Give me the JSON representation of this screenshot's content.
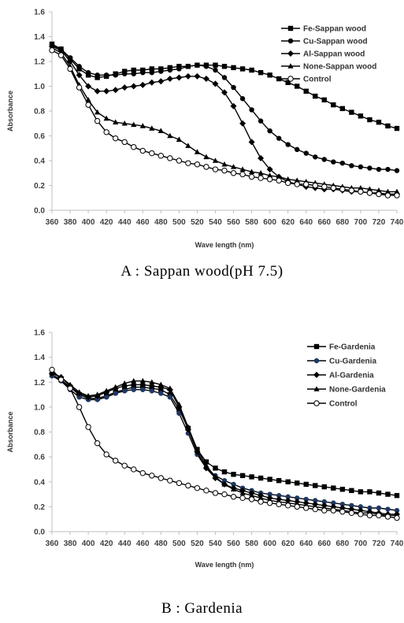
{
  "panels": [
    {
      "caption": "A : Sappan wood(pH 7.5)",
      "chart_data": {
        "type": "line",
        "title": "",
        "xlabel": "Wave length (nm)",
        "ylabel": "Absorbance",
        "ylim": [
          0,
          1.6
        ],
        "yticks": [
          "0.0",
          "0.2",
          "0.4",
          "0.6",
          "0.8",
          "1.0",
          "1.2",
          "1.4",
          "1.6"
        ],
        "x": [
          360,
          370,
          380,
          390,
          400,
          410,
          420,
          430,
          440,
          450,
          460,
          470,
          480,
          490,
          500,
          510,
          520,
          530,
          540,
          550,
          560,
          570,
          580,
          590,
          600,
          610,
          620,
          630,
          640,
          650,
          660,
          670,
          680,
          690,
          700,
          710,
          720,
          730,
          740
        ],
        "xticks": [
          "360",
          "380",
          "400",
          "420",
          "440",
          "460",
          "480",
          "500",
          "520",
          "540",
          "560",
          "580",
          "600",
          "620",
          "640",
          "660",
          "680",
          "700",
          "720",
          "740"
        ],
        "legend_position": "top-right",
        "series": [
          {
            "name": "Fe-Sappan wood",
            "marker": "square",
            "values": [
              1.34,
              1.3,
              1.22,
              1.14,
              1.09,
              1.07,
              1.08,
              1.1,
              1.12,
              1.13,
              1.13,
              1.14,
              1.14,
              1.15,
              1.16,
              1.16,
              1.17,
              1.17,
              1.17,
              1.16,
              1.15,
              1.14,
              1.13,
              1.11,
              1.09,
              1.06,
              1.03,
              1.0,
              0.96,
              0.92,
              0.89,
              0.85,
              0.82,
              0.79,
              0.76,
              0.73,
              0.71,
              0.68,
              0.66
            ]
          },
          {
            "name": "Cu-Sappan wood",
            "marker": "circle",
            "values": [
              1.33,
              1.3,
              1.23,
              1.16,
              1.11,
              1.09,
              1.09,
              1.09,
              1.1,
              1.1,
              1.11,
              1.11,
              1.12,
              1.13,
              1.14,
              1.16,
              1.17,
              1.16,
              1.13,
              1.07,
              0.99,
              0.9,
              0.81,
              0.72,
              0.64,
              0.58,
              0.53,
              0.49,
              0.46,
              0.43,
              0.41,
              0.39,
              0.38,
              0.36,
              0.35,
              0.34,
              0.33,
              0.33,
              0.32
            ]
          },
          {
            "name": "Al-Sappan wood",
            "marker": "diamond",
            "values": [
              1.32,
              1.29,
              1.2,
              1.09,
              1.0,
              0.96,
              0.96,
              0.97,
              0.99,
              1.0,
              1.01,
              1.03,
              1.04,
              1.06,
              1.07,
              1.08,
              1.08,
              1.06,
              1.02,
              0.95,
              0.84,
              0.7,
              0.55,
              0.42,
              0.33,
              0.27,
              0.23,
              0.21,
              0.19,
              0.18,
              0.17,
              0.17,
              0.16,
              0.15,
              0.15,
              0.14,
              0.14,
              0.13,
              0.13
            ]
          },
          {
            "name": "None-Sappan wood",
            "marker": "triangle",
            "values": [
              1.31,
              1.27,
              1.16,
              1.01,
              0.89,
              0.79,
              0.74,
              0.71,
              0.7,
              0.69,
              0.68,
              0.66,
              0.64,
              0.6,
              0.57,
              0.52,
              0.47,
              0.43,
              0.4,
              0.37,
              0.35,
              0.33,
              0.31,
              0.3,
              0.28,
              0.27,
              0.25,
              0.24,
              0.23,
              0.22,
              0.21,
              0.2,
              0.19,
              0.18,
              0.18,
              0.17,
              0.16,
              0.15,
              0.15
            ]
          },
          {
            "name": "Control",
            "marker": "open-circle",
            "values": [
              1.29,
              1.25,
              1.14,
              0.99,
              0.85,
              0.72,
              0.63,
              0.58,
              0.55,
              0.51,
              0.48,
              0.46,
              0.44,
              0.42,
              0.4,
              0.38,
              0.37,
              0.35,
              0.33,
              0.32,
              0.3,
              0.29,
              0.27,
              0.26,
              0.25,
              0.24,
              0.22,
              0.21,
              0.21,
              0.2,
              0.19,
              0.18,
              0.17,
              0.16,
              0.15,
              0.14,
              0.13,
              0.12,
              0.12
            ]
          }
        ],
        "colors": {
          "line": "#000000",
          "axis": "#bfbfbf"
        }
      }
    },
    {
      "caption": "B : Gardenia",
      "chart_data": {
        "type": "line",
        "title": "",
        "xlabel": "Wave length (nm)",
        "ylabel": "Absorbance",
        "ylim": [
          0,
          1.6
        ],
        "yticks": [
          "0.0",
          "0.2",
          "0.4",
          "0.6",
          "0.8",
          "1.0",
          "1.2",
          "1.4",
          "1.6"
        ],
        "x": [
          360,
          370,
          380,
          390,
          400,
          410,
          420,
          430,
          440,
          450,
          460,
          470,
          480,
          490,
          500,
          510,
          520,
          530,
          540,
          550,
          560,
          570,
          580,
          590,
          600,
          610,
          620,
          630,
          640,
          650,
          660,
          670,
          680,
          690,
          700,
          710,
          720,
          730,
          740
        ],
        "xticks": [
          "360",
          "380",
          "400",
          "420",
          "440",
          "460",
          "480",
          "500",
          "520",
          "540",
          "560",
          "580",
          "600",
          "620",
          "640",
          "660",
          "680",
          "700",
          "720",
          "740"
        ],
        "legend_position": "top-right",
        "series": [
          {
            "name": "Fe-Gardenia",
            "marker": "square",
            "values": [
              1.26,
              1.22,
              1.16,
              1.1,
              1.07,
              1.07,
              1.09,
              1.12,
              1.14,
              1.16,
              1.16,
              1.15,
              1.14,
              1.1,
              0.98,
              0.83,
              0.66,
              0.56,
              0.51,
              0.48,
              0.46,
              0.45,
              0.44,
              0.43,
              0.42,
              0.41,
              0.4,
              0.39,
              0.38,
              0.37,
              0.36,
              0.35,
              0.34,
              0.33,
              0.32,
              0.32,
              0.31,
              0.3,
              0.29
            ]
          },
          {
            "name": "Cu-Gardenia",
            "marker": "circle",
            "values": [
              1.25,
              1.21,
              1.14,
              1.08,
              1.06,
              1.06,
              1.08,
              1.11,
              1.13,
              1.14,
              1.14,
              1.13,
              1.11,
              1.08,
              0.95,
              0.79,
              0.62,
              0.51,
              0.45,
              0.41,
              0.38,
              0.35,
              0.33,
              0.31,
              0.3,
              0.29,
              0.28,
              0.27,
              0.26,
              0.25,
              0.24,
              0.23,
              0.22,
              0.21,
              0.2,
              0.19,
              0.19,
              0.18,
              0.17
            ]
          },
          {
            "name": "Al-Gardenia",
            "marker": "diamond",
            "values": [
              1.27,
              1.24,
              1.17,
              1.11,
              1.08,
              1.09,
              1.12,
              1.15,
              1.17,
              1.18,
              1.18,
              1.17,
              1.16,
              1.14,
              1.0,
              0.82,
              0.64,
              0.51,
              0.43,
              0.38,
              0.35,
              0.33,
              0.31,
              0.29,
              0.27,
              0.26,
              0.25,
              0.24,
              0.23,
              0.22,
              0.21,
              0.2,
              0.19,
              0.18,
              0.17,
              0.16,
              0.15,
              0.14,
              0.14
            ]
          },
          {
            "name": "None-Gardenia",
            "marker": "triangle",
            "values": [
              1.28,
              1.24,
              1.18,
              1.12,
              1.09,
              1.1,
              1.13,
              1.16,
              1.19,
              1.21,
              1.21,
              1.2,
              1.18,
              1.15,
              1.02,
              0.84,
              0.66,
              0.53,
              0.44,
              0.38,
              0.34,
              0.31,
              0.29,
              0.27,
              0.25,
              0.24,
              0.23,
              0.22,
              0.21,
              0.2,
              0.19,
              0.18,
              0.17,
              0.16,
              0.15,
              0.15,
              0.14,
              0.13,
              0.13
            ]
          },
          {
            "name": "Control",
            "marker": "open-circle",
            "values": [
              1.3,
              1.22,
              1.15,
              1.0,
              0.84,
              0.71,
              0.62,
              0.57,
              0.53,
              0.5,
              0.47,
              0.45,
              0.43,
              0.41,
              0.39,
              0.37,
              0.35,
              0.33,
              0.31,
              0.3,
              0.28,
              0.27,
              0.26,
              0.24,
              0.23,
              0.22,
              0.21,
              0.2,
              0.19,
              0.18,
              0.17,
              0.17,
              0.16,
              0.15,
              0.14,
              0.13,
              0.13,
              0.12,
              0.11
            ]
          }
        ],
        "colors": {
          "line": "#000000",
          "axis": "#bfbfbf",
          "cu_marker": "#1f3864"
        }
      }
    }
  ]
}
